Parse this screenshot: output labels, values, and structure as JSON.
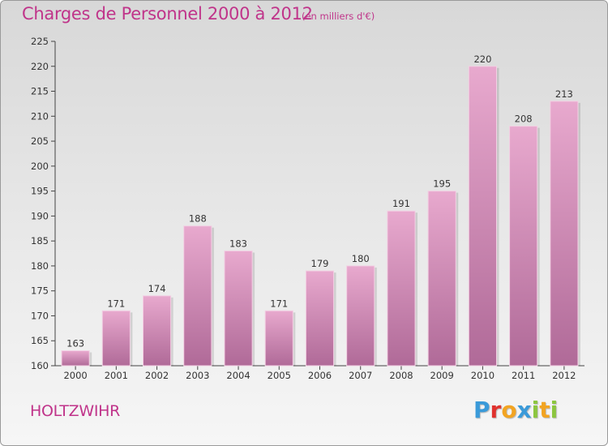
{
  "header": {
    "title": "Charges de Personnel 2000 à 2012",
    "subtitle": "(en milliers d'€)"
  },
  "footer": {
    "town": "HOLTZWIHR",
    "logo_letters": [
      "P",
      "r",
      "o",
      "x",
      "i",
      "t",
      "i"
    ],
    "logo_colors": [
      "#3a9ad9",
      "#e0322e",
      "#f2a422",
      "#3a9ad9",
      "#8cc63f",
      "#f2a422",
      "#8cc63f"
    ]
  },
  "colors": {
    "bar_top": "#e8a9ce",
    "bar_bottom": "#b06a98",
    "accent": "#c0348a"
  },
  "chart_data": {
    "type": "bar",
    "title": "Charges de Personnel 2000 à 2012",
    "subtitle": "(en milliers d'€)",
    "categories": [
      "2000",
      "2001",
      "2002",
      "2003",
      "2004",
      "2005",
      "2006",
      "2007",
      "2008",
      "2009",
      "2010",
      "2011",
      "2012"
    ],
    "values": [
      163,
      171,
      174,
      188,
      183,
      171,
      179,
      180,
      191,
      195,
      220,
      208,
      213
    ],
    "ylim": [
      160,
      225
    ],
    "yticks": [
      160,
      165,
      170,
      175,
      180,
      185,
      190,
      195,
      200,
      205,
      210,
      215,
      220,
      225
    ],
    "grid": false,
    "legend": "none"
  }
}
